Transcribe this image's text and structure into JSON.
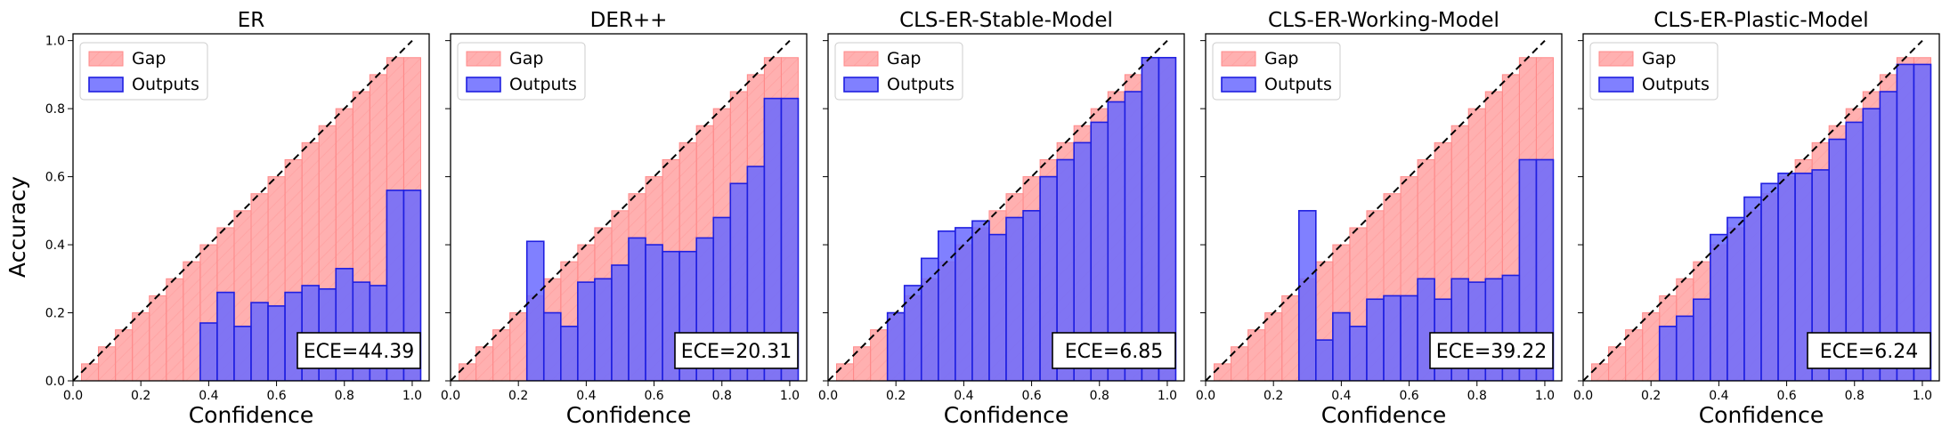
{
  "figure": {
    "shared_ylabel": "Accuracy",
    "legend_labels": {
      "gap": "Gap",
      "outputs": "Outputs"
    },
    "colors": {
      "gap_fill": "#ff6f6f",
      "gap_edge": "#ff8a8a",
      "gap_hatch": "#ff9f9f",
      "outputs_fill": "#6a6aff",
      "outputs_edge": "#1f1fe0",
      "diagonal": "#000000"
    }
  },
  "chart_data": [
    {
      "type": "bar",
      "title": "ER",
      "xlabel": "Confidence",
      "ylabel": "Accuracy",
      "xlim": [
        0,
        1.05
      ],
      "ylim": [
        0,
        1.02
      ],
      "xticks": [
        "0.0",
        "0.2",
        "0.4",
        "0.6",
        "0.8",
        "1.0"
      ],
      "yticks": [
        "0.0",
        "0.2",
        "0.4",
        "0.6",
        "0.8",
        "1.0"
      ],
      "bin_width": 0.05,
      "x": [
        0.05,
        0.1,
        0.15,
        0.2,
        0.25,
        0.3,
        0.35,
        0.4,
        0.45,
        0.5,
        0.55,
        0.6,
        0.65,
        0.7,
        0.75,
        0.8,
        0.85,
        0.9,
        0.95,
        1.0
      ],
      "series": [
        {
          "name": "Gap",
          "values": [
            0.05,
            0.1,
            0.15,
            0.2,
            0.25,
            0.3,
            0.35,
            0.4,
            0.45,
            0.5,
            0.55,
            0.6,
            0.65,
            0.7,
            0.75,
            0.8,
            0.85,
            0.9,
            0.95,
            0.95
          ]
        },
        {
          "name": "Outputs",
          "values": [
            0,
            0,
            0,
            0,
            0,
            0,
            0,
            0.17,
            0.26,
            0.16,
            0.23,
            0.22,
            0.26,
            0.28,
            0.27,
            0.33,
            0.29,
            0.28,
            0.56,
            0.56
          ]
        }
      ],
      "ece_label": "ECE=44.39",
      "legend_position": "upper-left",
      "grid": false
    },
    {
      "type": "bar",
      "title": "DER++",
      "xlabel": "Confidence",
      "ylabel": "",
      "xlim": [
        0,
        1.05
      ],
      "ylim": [
        0,
        1.02
      ],
      "xticks": [
        "0.0",
        "0.2",
        "0.4",
        "0.6",
        "0.8",
        "1.0"
      ],
      "yticks": [
        "0.0",
        "0.2",
        "0.4",
        "0.6",
        "0.8",
        "1.0"
      ],
      "bin_width": 0.05,
      "x": [
        0.05,
        0.1,
        0.15,
        0.2,
        0.25,
        0.3,
        0.35,
        0.4,
        0.45,
        0.5,
        0.55,
        0.6,
        0.65,
        0.7,
        0.75,
        0.8,
        0.85,
        0.9,
        0.95,
        1.0
      ],
      "series": [
        {
          "name": "Gap",
          "values": [
            0.05,
            0.1,
            0.15,
            0.2,
            0.25,
            0.3,
            0.35,
            0.4,
            0.45,
            0.5,
            0.55,
            0.6,
            0.65,
            0.7,
            0.75,
            0.8,
            0.85,
            0.9,
            0.95,
            0.95
          ]
        },
        {
          "name": "Outputs",
          "values": [
            0,
            0,
            0,
            0,
            0.41,
            0.2,
            0.16,
            0.29,
            0.3,
            0.34,
            0.42,
            0.4,
            0.38,
            0.38,
            0.42,
            0.48,
            0.58,
            0.63,
            0.83,
            0.83
          ]
        }
      ],
      "ece_label": "ECE=20.31",
      "legend_position": "upper-left",
      "grid": false
    },
    {
      "type": "bar",
      "title": "CLS-ER-Stable-Model",
      "xlabel": "Confidence",
      "ylabel": "",
      "xlim": [
        0,
        1.05
      ],
      "ylim": [
        0,
        1.02
      ],
      "xticks": [
        "0.0",
        "0.2",
        "0.4",
        "0.6",
        "0.8",
        "1.0"
      ],
      "yticks": [
        "0.0",
        "0.2",
        "0.4",
        "0.6",
        "0.8",
        "1.0"
      ],
      "bin_width": 0.05,
      "x": [
        0.05,
        0.1,
        0.15,
        0.2,
        0.25,
        0.3,
        0.35,
        0.4,
        0.45,
        0.5,
        0.55,
        0.6,
        0.65,
        0.7,
        0.75,
        0.8,
        0.85,
        0.9,
        0.95,
        1.0
      ],
      "series": [
        {
          "name": "Gap",
          "values": [
            0.05,
            0.1,
            0.15,
            0.2,
            0.25,
            0.3,
            0.35,
            0.4,
            0.45,
            0.5,
            0.55,
            0.6,
            0.65,
            0.7,
            0.75,
            0.8,
            0.85,
            0.9,
            0.95,
            0.95
          ]
        },
        {
          "name": "Outputs",
          "values": [
            0,
            0,
            0,
            0.2,
            0.28,
            0.36,
            0.44,
            0.45,
            0.47,
            0.43,
            0.48,
            0.5,
            0.6,
            0.65,
            0.7,
            0.76,
            0.82,
            0.85,
            0.95,
            0.95
          ]
        }
      ],
      "ece_label": "ECE=6.85",
      "legend_position": "upper-left",
      "grid": false
    },
    {
      "type": "bar",
      "title": "CLS-ER-Working-Model",
      "xlabel": "Confidence",
      "ylabel": "",
      "xlim": [
        0,
        1.05
      ],
      "ylim": [
        0,
        1.02
      ],
      "xticks": [
        "0.0",
        "0.2",
        "0.4",
        "0.6",
        "0.8",
        "1.0"
      ],
      "yticks": [
        "0.0",
        "0.2",
        "0.4",
        "0.6",
        "0.8",
        "1.0"
      ],
      "bin_width": 0.05,
      "x": [
        0.05,
        0.1,
        0.15,
        0.2,
        0.25,
        0.3,
        0.35,
        0.4,
        0.45,
        0.5,
        0.55,
        0.6,
        0.65,
        0.7,
        0.75,
        0.8,
        0.85,
        0.9,
        0.95,
        1.0
      ],
      "series": [
        {
          "name": "Gap",
          "values": [
            0.05,
            0.1,
            0.15,
            0.2,
            0.25,
            0.3,
            0.35,
            0.4,
            0.45,
            0.5,
            0.55,
            0.6,
            0.65,
            0.7,
            0.75,
            0.8,
            0.85,
            0.9,
            0.95,
            0.95
          ]
        },
        {
          "name": "Outputs",
          "values": [
            0,
            0,
            0,
            0,
            0,
            0.5,
            0.12,
            0.2,
            0.16,
            0.24,
            0.25,
            0.25,
            0.3,
            0.24,
            0.3,
            0.29,
            0.3,
            0.31,
            0.65,
            0.65
          ]
        }
      ],
      "ece_label": "ECE=39.22",
      "legend_position": "upper-left",
      "grid": false
    },
    {
      "type": "bar",
      "title": "CLS-ER-Plastic-Model",
      "xlabel": "Confidence",
      "ylabel": "",
      "xlim": [
        0,
        1.05
      ],
      "ylim": [
        0,
        1.02
      ],
      "xticks": [
        "0.0",
        "0.2",
        "0.4",
        "0.6",
        "0.8",
        "1.0"
      ],
      "yticks": [
        "0.0",
        "0.2",
        "0.4",
        "0.6",
        "0.8",
        "1.0"
      ],
      "bin_width": 0.05,
      "x": [
        0.05,
        0.1,
        0.15,
        0.2,
        0.25,
        0.3,
        0.35,
        0.4,
        0.45,
        0.5,
        0.55,
        0.6,
        0.65,
        0.7,
        0.75,
        0.8,
        0.85,
        0.9,
        0.95,
        1.0
      ],
      "series": [
        {
          "name": "Gap",
          "values": [
            0.05,
            0.1,
            0.15,
            0.2,
            0.25,
            0.3,
            0.35,
            0.4,
            0.45,
            0.5,
            0.55,
            0.6,
            0.65,
            0.7,
            0.75,
            0.8,
            0.85,
            0.9,
            0.95,
            0.95
          ]
        },
        {
          "name": "Outputs",
          "values": [
            0,
            0,
            0,
            0,
            0.16,
            0.19,
            0.24,
            0.43,
            0.48,
            0.54,
            0.58,
            0.61,
            0.61,
            0.62,
            0.71,
            0.76,
            0.8,
            0.85,
            0.93,
            0.93
          ]
        }
      ],
      "ece_label": "ECE=6.24",
      "legend_position": "upper-left",
      "grid": false
    }
  ]
}
